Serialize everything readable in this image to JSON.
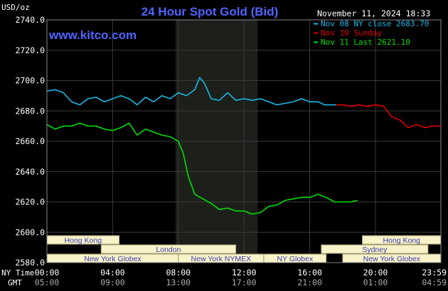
{
  "chart_data": {
    "type": "line",
    "title": "24 Hour Spot Gold (Bid)",
    "ylabel": "USD/oz",
    "watermark": "www.kitco.com",
    "timestamp": "November 11, 2024 18:33",
    "ylim": [
      2580,
      2740
    ],
    "y_ticks": [
      "2740.0",
      "2720.0",
      "2700.0",
      "2680.0",
      "2660.0",
      "2640.0",
      "2620.0",
      "2600.0",
      "2580.0"
    ],
    "x_axis_ny_label": "NY Time",
    "x_axis_gmt_label": "GMT",
    "x_ticks_ny": [
      "00:00",
      "04:00",
      "08:00",
      "12:00",
      "16:00",
      "20:00",
      "23:59"
    ],
    "x_ticks_gmt": [
      "05:00",
      "09:00",
      "13:00",
      "17:00",
      "21:00",
      "01:00",
      "04:59"
    ],
    "x_hours": [
      0,
      4,
      8,
      12,
      16,
      20,
      23.983
    ],
    "x_range_hours": [
      0,
      23.983
    ],
    "highlight_hours": [
      7.83,
      12.83
    ],
    "grid": true,
    "legend_position": "top-right",
    "series": [
      {
        "name": "Nov 08 NY close 2683.70",
        "color": "#1ab8e8",
        "x": [
          0,
          0.5,
          1,
          1.5,
          2,
          2.5,
          3,
          3.5,
          4,
          4.5,
          5,
          5.5,
          6,
          6.5,
          7,
          7.5,
          8,
          8.5,
          9,
          9.3,
          9.6,
          10,
          10.5,
          11,
          11.5,
          12,
          12.5,
          13,
          13.5,
          14,
          14.5,
          15,
          15.5,
          16,
          16.5,
          16.9,
          17.3,
          17.6
        ],
        "y": [
          2693,
          2694,
          2692,
          2686,
          2684,
          2688,
          2689,
          2686,
          2688,
          2690,
          2688,
          2684,
          2689,
          2686,
          2690,
          2688,
          2692,
          2690,
          2694,
          2702,
          2698,
          2688,
          2687,
          2692,
          2687,
          2688,
          2687,
          2688,
          2686,
          2684,
          2685,
          2686,
          2688,
          2686,
          2686,
          2684,
          2684,
          2684
        ]
      },
      {
        "name": "Nov 10 Sunday",
        "color": "#e00000",
        "x": [
          17.6,
          18,
          18.5,
          19,
          19.5,
          20,
          20.5,
          21,
          21.5,
          22,
          22.5,
          23,
          23.5,
          23.98
        ],
        "y": [
          2684,
          2684,
          2683,
          2684,
          2683,
          2684,
          2683,
          2676,
          2674,
          2669,
          2671,
          2669,
          2670,
          2670
        ]
      },
      {
        "name": "Nov 11 Last 2621.10",
        "color": "#00e000",
        "x": [
          0,
          0.5,
          1,
          1.5,
          2,
          2.5,
          3,
          3.5,
          4,
          4.5,
          5,
          5.5,
          6,
          6.5,
          7,
          7.5,
          8,
          8.3,
          8.6,
          9,
          9.5,
          10,
          10.5,
          11,
          11.5,
          12,
          12.5,
          13,
          13.5,
          14,
          14.5,
          15,
          15.5,
          16,
          16.5,
          17,
          17.5,
          18,
          18.5,
          18.9
        ],
        "y": [
          2671,
          2668,
          2670,
          2670,
          2672,
          2670,
          2670,
          2668,
          2667,
          2669,
          2672,
          2664,
          2668,
          2666,
          2664,
          2663,
          2660,
          2652,
          2637,
          2625,
          2622,
          2619,
          2615,
          2616,
          2614,
          2614,
          2612,
          2613,
          2617,
          2618,
          2621,
          2622,
          2623,
          2623,
          2625,
          2623,
          2620,
          2620,
          2620,
          2621
        ]
      }
    ]
  },
  "sessions": [
    {
      "label": "Hong Kong",
      "start": 0,
      "end": 4.4,
      "row": 0
    },
    {
      "label": "London",
      "start": 3.3,
      "end": 11.5,
      "row": 1
    },
    {
      "label": "New York Globex",
      "start": 0,
      "end": 8,
      "row": 2
    },
    {
      "label": "New York NYMEX",
      "start": 8,
      "end": 13.2,
      "row": 2
    },
    {
      "label": "NY Globex",
      "start": 13.2,
      "end": 17,
      "row": 2
    },
    {
      "label": "Hong Kong",
      "start": 19.2,
      "end": 23.983,
      "row": 0
    },
    {
      "label": "Sydney",
      "start": 16.7,
      "end": 23.2,
      "row": 1
    },
    {
      "label": "New York Globex",
      "start": 18,
      "end": 23.983,
      "row": 2
    }
  ],
  "colors": {
    "background": "#000000",
    "plot_background": "#000000",
    "highlight": "#1d1f1b",
    "grid": "#3a3a3a",
    "text": "#ffffff",
    "title": "#4f63ff",
    "watermark": "#4f63ff",
    "session_fill": "#f8f3c8",
    "session_text": "#3a3ab0",
    "session_border": "#a39b72"
  }
}
